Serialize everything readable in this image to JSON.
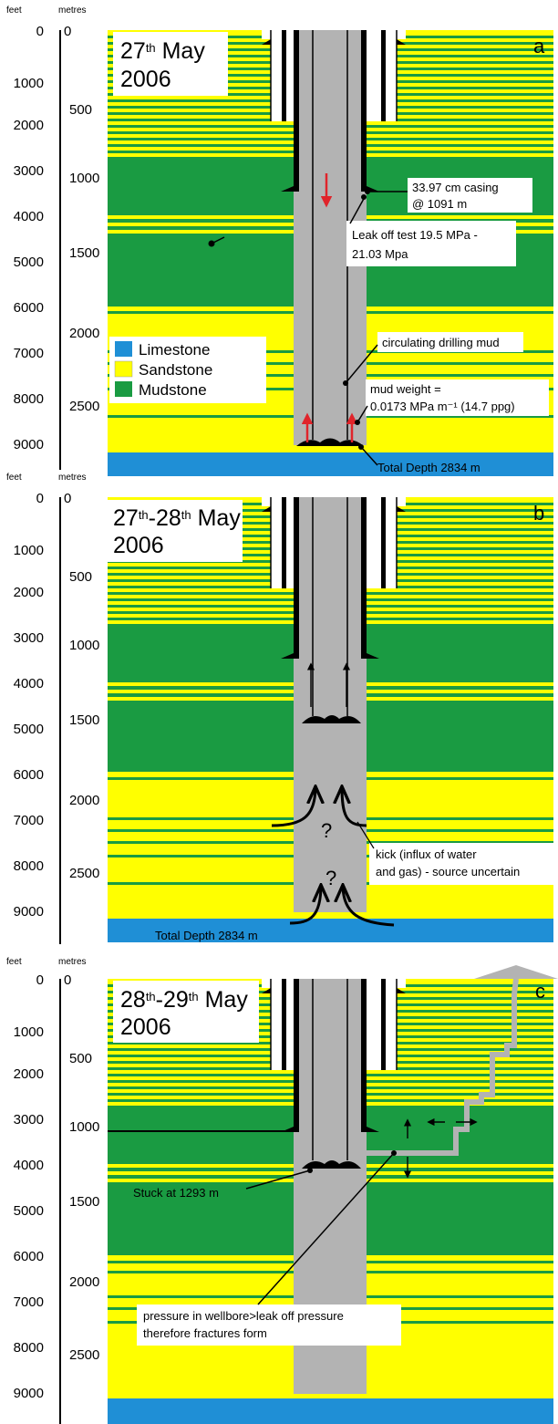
{
  "axis_labels": {
    "feet": "feet",
    "metres": "metres"
  },
  "feet_ticks": [
    "0",
    "1000",
    "2000",
    "3000",
    "4000",
    "5000",
    "6000",
    "7000",
    "8000",
    "9000"
  ],
  "metre_ticks": [
    "0",
    "500",
    "1000",
    "1500",
    "2000",
    "2500"
  ],
  "legend": [
    {
      "label": "Limestone",
      "color": "#1f8fd6"
    },
    {
      "label": "Sandstone",
      "color": "#ffff00"
    },
    {
      "label": "Mudstone",
      "color": "#1a9b42"
    }
  ],
  "colors": {
    "limestone": "#1f8fd6",
    "sandstone": "#ffff00",
    "mudstone": "#1a9b42",
    "mud": "#b3b3b3",
    "arrow_red": "#e0242b"
  },
  "panels": [
    {
      "letter": "a",
      "date": {
        "a": "27",
        "sup_a": "th",
        "mid": "",
        "b": "",
        "sup_b": "",
        "month": " May",
        "year": "2006"
      },
      "annotations": {
        "casing_1": "33.97 cm casing",
        "casing_2": "@ 1091 m",
        "leakoff_1": "Leak off test 19.5 MPa -",
        "leakoff_2": "21.03 Mpa",
        "circulating": "circulating drilling mud",
        "mudweight_1": "mud weight =",
        "mudweight_2": "0.0173 MPa m⁻¹ (14.7 ppg)",
        "total_depth": "Total Depth 2834 m"
      }
    },
    {
      "letter": "b",
      "date": {
        "a": "27",
        "sup_a": "th",
        "mid": "-",
        "b": "28",
        "sup_b": "th",
        "month": " May",
        "year": "2006"
      },
      "annotations": {
        "kick_1": "kick (influx of water",
        "kick_2": "and gas) - source uncertain",
        "question": "?",
        "total_depth": "Total Depth 2834 m"
      }
    },
    {
      "letter": "c",
      "date": {
        "a": "28",
        "sup_a": "th",
        "mid": "-",
        "b": "29",
        "sup_b": "th",
        "month": " May",
        "year": "2006"
      },
      "annotations": {
        "stuck": "Stuck at 1293 m",
        "pressure_1": "pressure in wellbore>leak off pressure",
        "pressure_2": "therefore fractures form"
      }
    }
  ]
}
